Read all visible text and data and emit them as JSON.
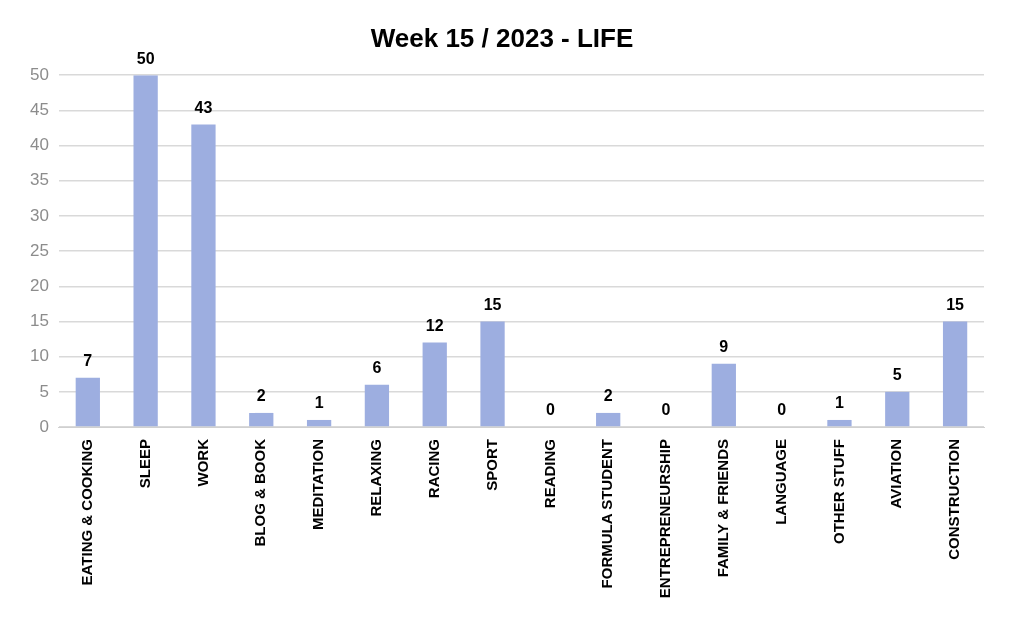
{
  "chart_data": {
    "type": "bar",
    "title": "Week 15 / 2023 - LIFE",
    "categories": [
      "EATING & COOKING",
      "SLEEP",
      "WORK",
      "BLOG & BOOK",
      "MEDITATION",
      "RELAXING",
      "RACING",
      "SPORT",
      "READING",
      "FORMULA STUDENT",
      "ENTREPRENEURSHIP",
      "FAMILY & FRIENDS",
      "LANGUAGE",
      "OTHER STUFF",
      "AVIATION",
      "CONSTRUCTION"
    ],
    "values": [
      7,
      50,
      43,
      2,
      1,
      6,
      12,
      15,
      0,
      2,
      0,
      9,
      0,
      1,
      5,
      15
    ],
    "color": "#9daee0",
    "ylim": [
      0,
      50
    ],
    "yticks": [
      0,
      5,
      10,
      15,
      20,
      25,
      30,
      35,
      40,
      45,
      50
    ],
    "grid": "y",
    "data_labels": true
  }
}
